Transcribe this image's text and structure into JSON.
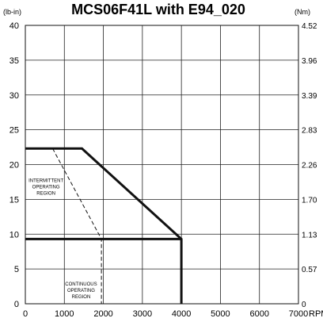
{
  "chart_data": {
    "type": "line",
    "title": "MCS06F41L with E94_020",
    "left_unit": "(lb-in)",
    "right_unit": "(Nm)",
    "x_unit": "RPM",
    "xlim": [
      0,
      7000
    ],
    "ylim": [
      0,
      40
    ],
    "x_ticks": [
      0,
      1000,
      2000,
      3000,
      4000,
      5000,
      6000,
      7000
    ],
    "y_ticks": [
      0,
      5,
      10,
      15,
      20,
      25,
      30,
      35,
      40
    ],
    "right_ticks": [
      "0",
      "0.57",
      "1.13",
      "1.70",
      "2.26",
      "2.83",
      "3.39",
      "3.96",
      "4.52"
    ],
    "grid": true,
    "series": [
      {
        "style": "thick-solid",
        "x": [
          0,
          1450,
          4000,
          4000
        ],
        "y": [
          22.3,
          22.3,
          9.3,
          0
        ]
      },
      {
        "style": "thick-solid",
        "x": [
          0,
          4000
        ],
        "y": [
          9.3,
          9.3
        ]
      },
      {
        "style": "dashed",
        "x": [
          700,
          1950,
          1950
        ],
        "y": [
          22.3,
          9.3,
          0
        ]
      }
    ],
    "annotations": [
      {
        "lines": [
          "INTERMITTENT",
          "OPERATING",
          "REGION"
        ],
        "x": 530,
        "y": 17.5
      },
      {
        "lines": [
          "CONTINUOUS",
          "OPERATING",
          "REGION"
        ],
        "x": 1430,
        "y": 2.6
      }
    ]
  }
}
